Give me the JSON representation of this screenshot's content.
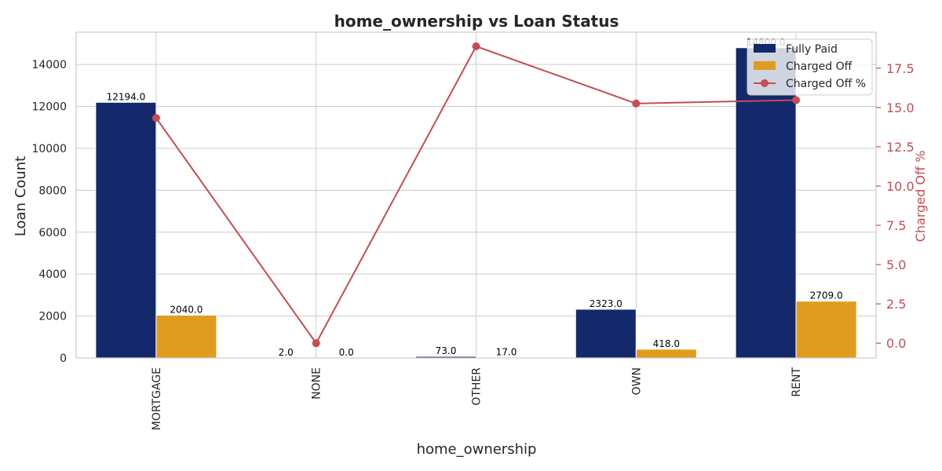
{
  "chart_data": {
    "type": "bar",
    "title": "home_ownership vs Loan Status",
    "xlabel": "home_ownership",
    "ylabel": "Loan Count",
    "y2label": "Charged Off %",
    "categories": [
      "MORTGAGE",
      "NONE",
      "OTHER",
      "OWN",
      "RENT"
    ],
    "series": [
      {
        "name": "Fully Paid",
        "type": "bar",
        "axis": "left",
        "color": "#13296b",
        "values": [
          12194.0,
          2.0,
          73.0,
          2323.0,
          14800.0
        ]
      },
      {
        "name": "Charged Off",
        "type": "bar",
        "axis": "left",
        "color": "#e09c20",
        "values": [
          2040.0,
          0.0,
          17.0,
          418.0,
          2709.0
        ]
      },
      {
        "name": "Charged Off %",
        "type": "line",
        "axis": "right",
        "color": "#c44e52",
        "values": [
          14.33,
          0.0,
          18.89,
          15.25,
          15.47
        ]
      }
    ],
    "data_labels": {
      "Fully Paid": [
        "12194.0",
        "2.0",
        "73.0",
        "2323.0",
        "14800.0"
      ],
      "Charged Off": [
        "2040.0",
        "0.0",
        "17.0",
        "418.0",
        "2709.0"
      ]
    },
    "ylim": [
      0,
      15540
    ],
    "y2lim": [
      -0.94,
      19.79
    ],
    "yticks": [
      0,
      2000,
      4000,
      6000,
      8000,
      10000,
      12000,
      14000
    ],
    "ytick_labels": [
      "0",
      "2000",
      "4000",
      "6000",
      "8000",
      "10000",
      "12000",
      "14000"
    ],
    "y2ticks": [
      0,
      2.5,
      5,
      7.5,
      10,
      12.5,
      15,
      17.5
    ],
    "y2tick_labels": [
      "0.0",
      "2.5",
      "5.0",
      "7.5",
      "10.0",
      "12.5",
      "15.0",
      "17.5"
    ],
    "grid": true,
    "legend_position": "top-right"
  }
}
